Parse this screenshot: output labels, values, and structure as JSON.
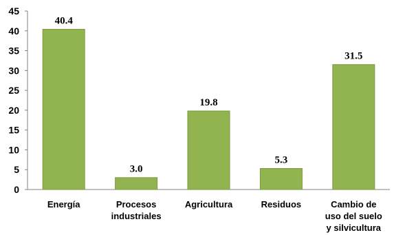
{
  "chart_data": {
    "type": "bar",
    "categories": [
      [
        "Energía"
      ],
      [
        "Procesos",
        "industriales"
      ],
      [
        "Agricultura"
      ],
      [
        "Residuos"
      ],
      [
        "Cambio de",
        "uso del suelo",
        "y silvicultura"
      ]
    ],
    "values": [
      40.4,
      3.0,
      19.8,
      5.3,
      31.5
    ],
    "data_labels": [
      "40.4",
      "3.0",
      "19.8",
      "5.3",
      "31.5"
    ],
    "yticks": [
      "0",
      "5",
      "10",
      "15",
      "20",
      "25",
      "30",
      "35",
      "40",
      "45"
    ],
    "ylim": [
      0,
      45
    ],
    "grid": false,
    "colors": {
      "bar_fill": "#92b450",
      "bar_stroke": "#7a9a3e",
      "axis": "#808080"
    }
  }
}
